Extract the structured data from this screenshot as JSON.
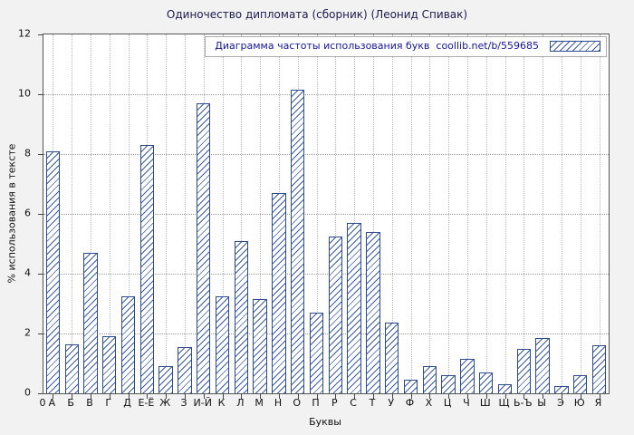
{
  "chart_data": {
    "type": "bar",
    "title": "Одиночество дипломата (сборник) (Леонид Спивак)",
    "legend_label": "Диаграмма частоты использования букв",
    "legend_link": "coollib.net/b/559685",
    "xlabel": "Буквы",
    "ylabel": "% использования в тексте",
    "ylim": [
      0,
      12
    ],
    "ytick_step": 2,
    "origin_label": "0",
    "grid": true,
    "legend_position": "top-right",
    "categories": [
      "А",
      "Б",
      "В",
      "Г",
      "Д",
      "Е-Ё",
      "Ж",
      "З",
      "И-Й",
      "К",
      "Л",
      "М",
      "Н",
      "О",
      "П",
      "Р",
      "С",
      "Т",
      "У",
      "Ф",
      "Х",
      "Ц",
      "Ч",
      "Ш",
      "Щ",
      "Ь-Ъ",
      "Ы",
      "Э",
      "Ю",
      "Я"
    ],
    "values": [
      8.1,
      1.65,
      4.7,
      1.9,
      3.25,
      8.3,
      0.9,
      1.55,
      9.7,
      3.25,
      5.1,
      3.15,
      6.7,
      10.15,
      2.7,
      5.25,
      5.7,
      5.4,
      2.35,
      0.45,
      0.9,
      0.6,
      1.15,
      0.7,
      0.3,
      1.5,
      1.85,
      0.25,
      0.6,
      1.6
    ],
    "colors": {
      "bar_border": "#2b4a8f",
      "bar_hatch": "#3c5ca8",
      "legend_text": "#1515a0",
      "figure_background": "#f2f2f2",
      "plot_background": "#ffffff"
    }
  }
}
